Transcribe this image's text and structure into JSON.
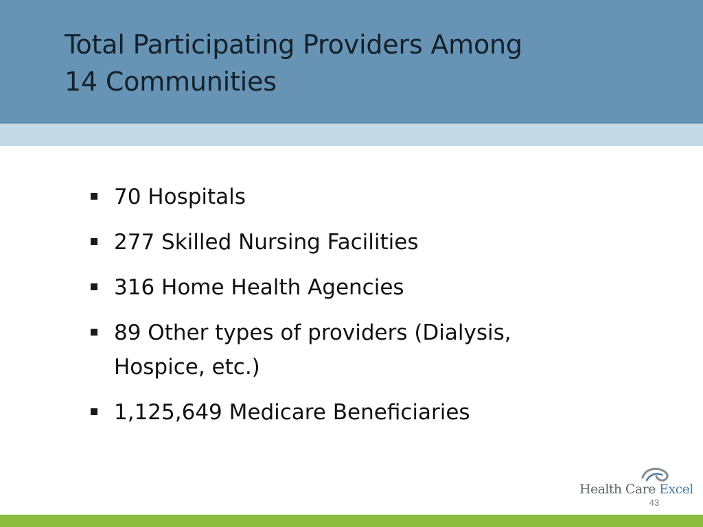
{
  "slide": {
    "title_lines": [
      "Total Participating Providers Among",
      "14 Communities"
    ],
    "bullets": [
      {
        "lines": [
          "70 Hospitals"
        ]
      },
      {
        "lines": [
          "277 Skilled Nursing Facilities"
        ]
      },
      {
        "lines": [
          "316 Home Health Agencies"
        ]
      },
      {
        "lines": [
          "89 Other types of providers (Dialysis,",
          "Hospice, etc.)"
        ]
      },
      {
        "lines": [
          "1,125,649 Medicare Beneficiaries"
        ]
      }
    ],
    "page_number": "43"
  },
  "logo": {
    "text_part1": "Health Care",
    "text_part2": "Excel",
    "icon": "swoosh-logo-icon"
  },
  "colors": {
    "header": "#6794b4",
    "header_stripe": "#c4dae7",
    "footer": "#8dbb3e",
    "logo_accent": "#477fa6"
  }
}
